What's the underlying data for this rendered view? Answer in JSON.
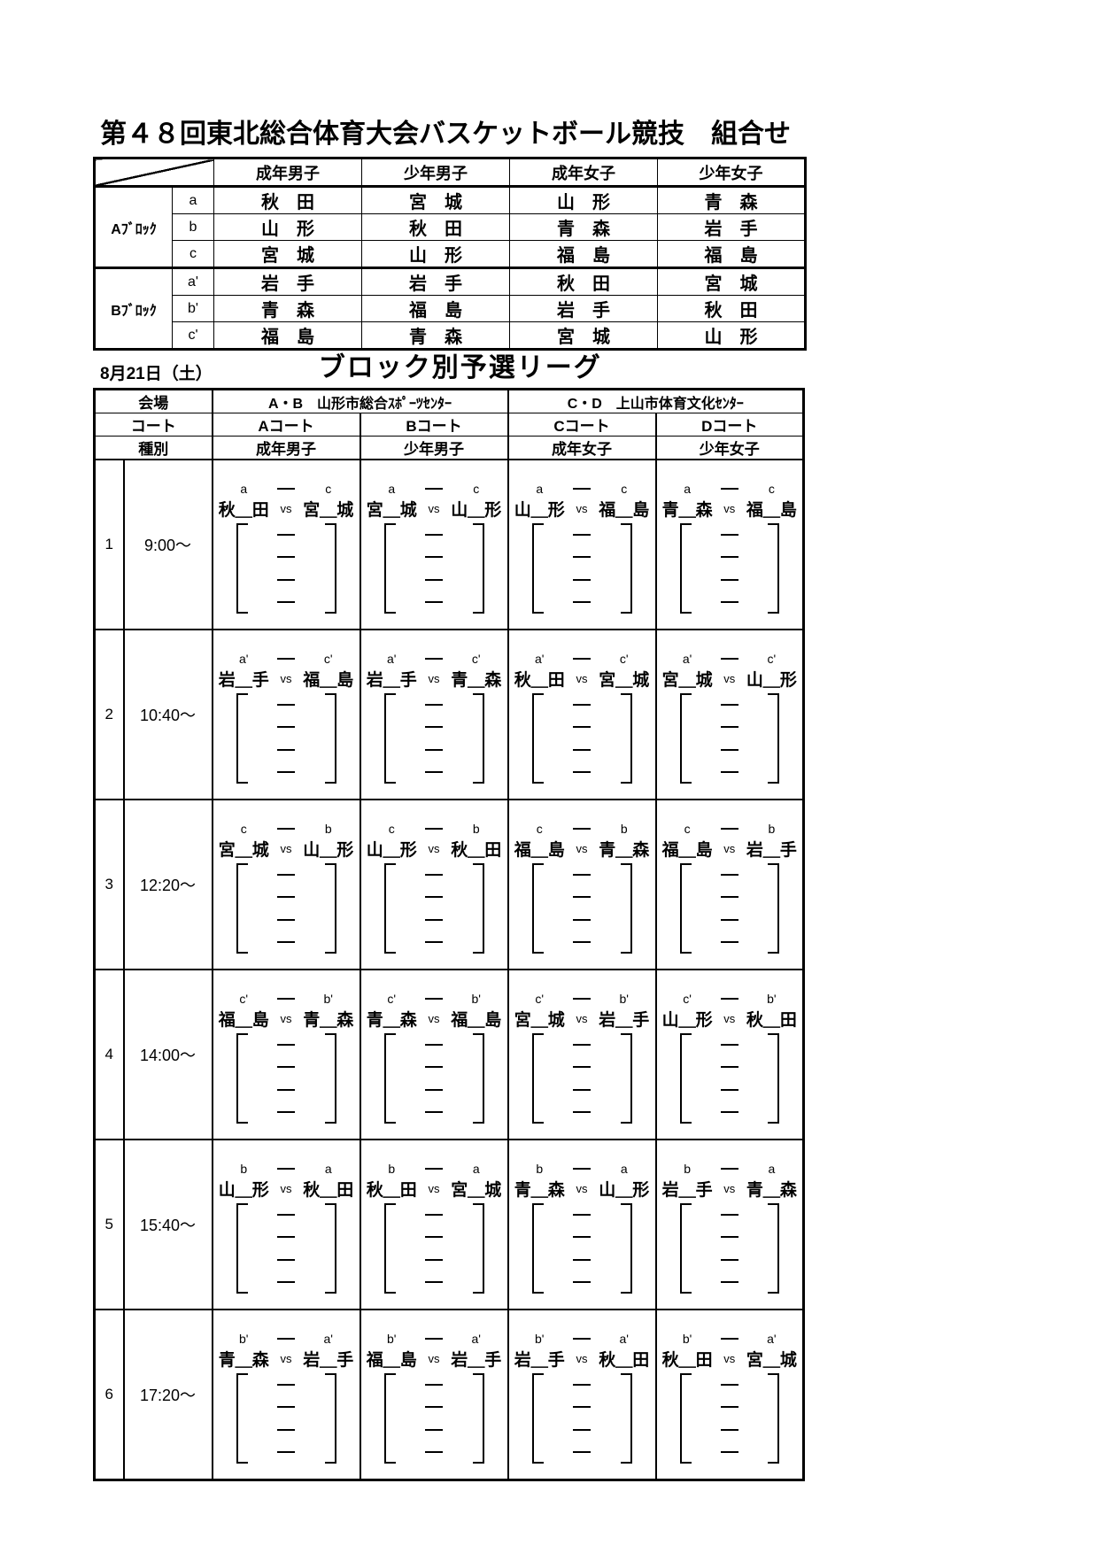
{
  "page": {
    "title": "第４８回東北総合体育大会バスケットボール競技　組合せ"
  },
  "pairings_table": {
    "categories": [
      "成年男子",
      "少年男子",
      "成年女子",
      "少年女子"
    ],
    "blocks": [
      {
        "name": "Aﾌﾞﾛｯｸ",
        "rows": [
          {
            "letter": "a",
            "teams": [
              "秋　田",
              "宮　城",
              "山　形",
              "青　森"
            ]
          },
          {
            "letter": "b",
            "teams": [
              "山　形",
              "秋　田",
              "青　森",
              "岩　手"
            ]
          },
          {
            "letter": "c",
            "teams": [
              "宮　城",
              "山　形",
              "福　島",
              "福　島"
            ]
          }
        ]
      },
      {
        "name": "Bﾌﾞﾛｯｸ",
        "rows": [
          {
            "letter": "a'",
            "teams": [
              "岩　手",
              "岩　手",
              "秋　田",
              "宮　城"
            ]
          },
          {
            "letter": "b'",
            "teams": [
              "青　森",
              "福　島",
              "岩　手",
              "秋　田"
            ]
          },
          {
            "letter": "c'",
            "teams": [
              "福　島",
              "青　森",
              "宮　城",
              "山　形"
            ]
          }
        ]
      }
    ]
  },
  "date_label": "8月21日（土）",
  "section_title": "ブロック別予選リーグ",
  "schedule": {
    "venue_row_label": "会場",
    "venue_ab": "A・B　山形市総合ｽﾎﾟｰﾂｾﾝﾀｰ",
    "venue_cd": "C・D　上山市体育文化ｾﾝﾀｰ",
    "court_row_label": "コート",
    "courts": [
      "Aコート",
      "Bコート",
      "Cコート",
      "Dコート"
    ],
    "category_row_label": "種別",
    "categories": [
      "成年男子",
      "少年男子",
      "成年女子",
      "少年女子"
    ],
    "vs_label": "vs",
    "rows": [
      {
        "no": "1",
        "time": "9:00～",
        "matches": [
          {
            "l1": "a",
            "t1": "秋＿田",
            "l2": "c",
            "t2": "宮＿城"
          },
          {
            "l1": "a",
            "t1": "宮＿城",
            "l2": "c",
            "t2": "山＿形"
          },
          {
            "l1": "a",
            "t1": "山＿形",
            "l2": "c",
            "t2": "福＿島"
          },
          {
            "l1": "a",
            "t1": "青＿森",
            "l2": "c",
            "t2": "福＿島"
          }
        ]
      },
      {
        "no": "2",
        "time": "10:40～",
        "matches": [
          {
            "l1": "a'",
            "t1": "岩＿手",
            "l2": "c'",
            "t2": "福＿島"
          },
          {
            "l1": "a'",
            "t1": "岩＿手",
            "l2": "c'",
            "t2": "青＿森"
          },
          {
            "l1": "a'",
            "t1": "秋＿田",
            "l2": "c'",
            "t2": "宮＿城"
          },
          {
            "l1": "a'",
            "t1": "宮＿城",
            "l2": "c'",
            "t2": "山＿形"
          }
        ]
      },
      {
        "no": "3",
        "time": "12:20～",
        "matches": [
          {
            "l1": "c",
            "t1": "宮＿城",
            "l2": "b",
            "t2": "山＿形"
          },
          {
            "l1": "c",
            "t1": "山＿形",
            "l2": "b",
            "t2": "秋＿田"
          },
          {
            "l1": "c",
            "t1": "福＿島",
            "l2": "b",
            "t2": "青＿森"
          },
          {
            "l1": "c",
            "t1": "福＿島",
            "l2": "b",
            "t2": "岩＿手"
          }
        ]
      },
      {
        "no": "4",
        "time": "14:00～",
        "matches": [
          {
            "l1": "c'",
            "t1": "福＿島",
            "l2": "b'",
            "t2": "青＿森"
          },
          {
            "l1": "c'",
            "t1": "青＿森",
            "l2": "b'",
            "t2": "福＿島"
          },
          {
            "l1": "c'",
            "t1": "宮＿城",
            "l2": "b'",
            "t2": "岩＿手"
          },
          {
            "l1": "c'",
            "t1": "山＿形",
            "l2": "b'",
            "t2": "秋＿田"
          }
        ]
      },
      {
        "no": "5",
        "time": "15:40～",
        "matches": [
          {
            "l1": "b",
            "t1": "山＿形",
            "l2": "a",
            "t2": "秋＿田"
          },
          {
            "l1": "b",
            "t1": "秋＿田",
            "l2": "a",
            "t2": "宮＿城"
          },
          {
            "l1": "b",
            "t1": "青＿森",
            "l2": "a",
            "t2": "山＿形"
          },
          {
            "l1": "b",
            "t1": "岩＿手",
            "l2": "a",
            "t2": "青＿森"
          }
        ]
      },
      {
        "no": "6",
        "time": "17:20～",
        "matches": [
          {
            "l1": "b'",
            "t1": "青＿森",
            "l2": "a'",
            "t2": "岩＿手"
          },
          {
            "l1": "b'",
            "t1": "福＿島",
            "l2": "a'",
            "t2": "岩＿手"
          },
          {
            "l1": "b'",
            "t1": "岩＿手",
            "l2": "a'",
            "t2": "秋＿田"
          },
          {
            "l1": "b'",
            "t1": "秋＿田",
            "l2": "a'",
            "t2": "宮＿城"
          }
        ]
      }
    ]
  }
}
